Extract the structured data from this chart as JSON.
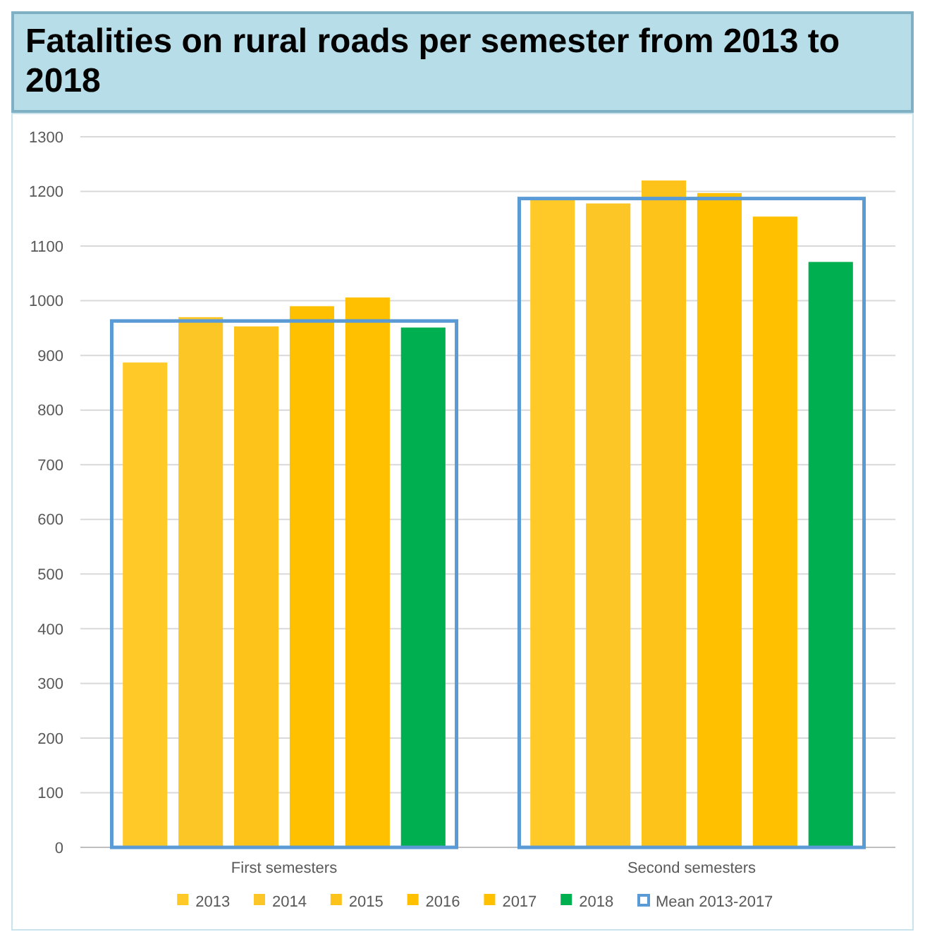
{
  "chart_data": {
    "type": "bar",
    "title": "Fatalities on rural roads per semester from 2013 to 2018",
    "categories": [
      "First semesters",
      "Second semesters"
    ],
    "series": [
      {
        "name": "2013",
        "color": "#ffca28",
        "values": [
          887,
          1185
        ]
      },
      {
        "name": "2014",
        "color": "#fdc627",
        "values": [
          970,
          1178
        ]
      },
      {
        "name": "2015",
        "color": "#fec31a",
        "values": [
          953,
          1220
        ]
      },
      {
        "name": "2016",
        "color": "#ffc000",
        "values": [
          990,
          1197
        ]
      },
      {
        "name": "2017",
        "color": "#ffc000",
        "values": [
          1006,
          1154
        ]
      },
      {
        "name": "2018",
        "color": "#00b050",
        "values": [
          951,
          1071
        ]
      },
      {
        "name": "Mean 2013-2017",
        "type": "bar",
        "color": "#5b9bd5",
        "values": [
          963,
          1187
        ]
      }
    ],
    "ylim": [
      0,
      1300
    ],
    "yticks": [
      0,
      100,
      200,
      300,
      400,
      500,
      600,
      700,
      800,
      900,
      1000,
      1100,
      1200,
      1300
    ],
    "grid": "y",
    "legend": "bottom"
  }
}
